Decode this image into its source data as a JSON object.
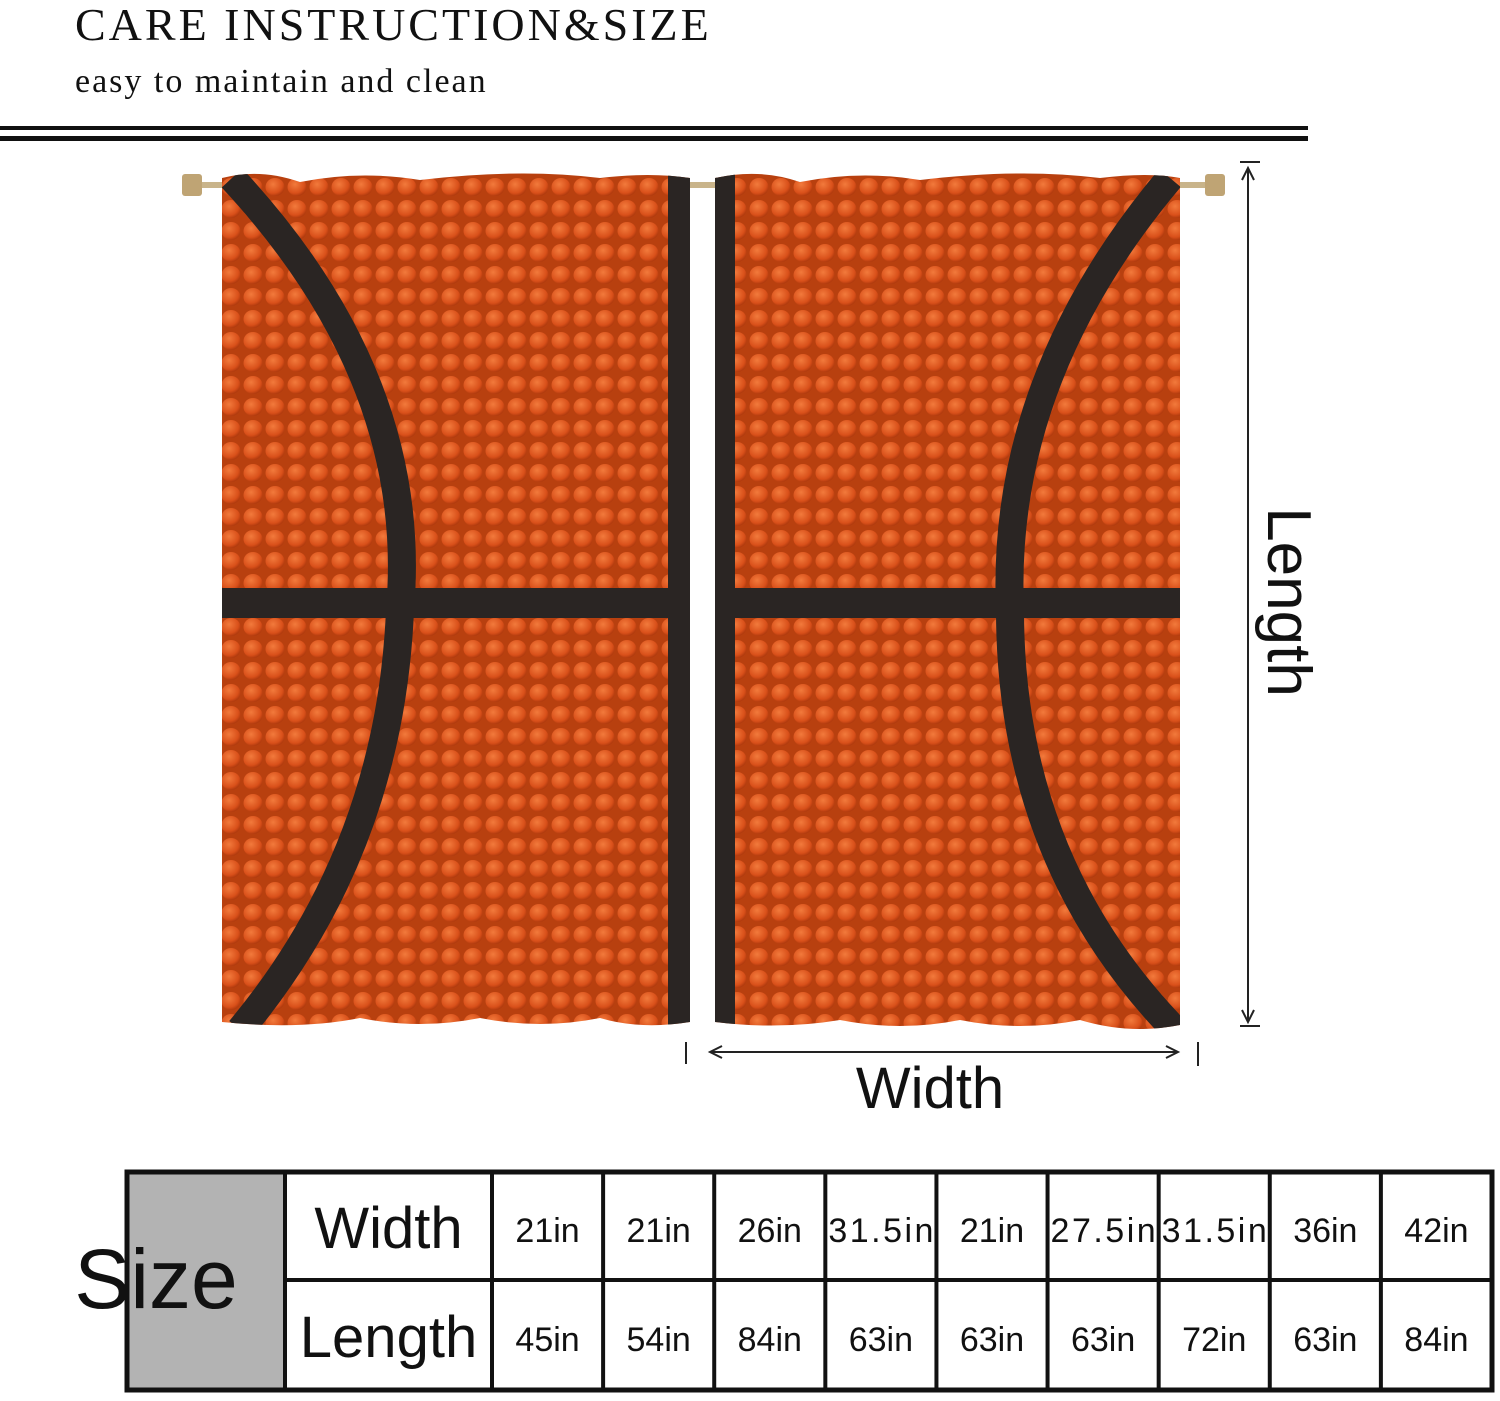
{
  "header": {
    "title": "CARE INSTRUCTION&SIZE",
    "subtitle": "easy to maintain and clean"
  },
  "diagram": {
    "length_label": "Length",
    "width_label": "Width"
  },
  "table": {
    "header": "Size",
    "rows": [
      {
        "label": "Width",
        "cells": [
          "21in",
          "21in",
          "26in",
          "31.5in",
          "21in",
          "27.5in",
          "31.5in",
          "36in",
          "42in"
        ]
      },
      {
        "label": "Length",
        "cells": [
          "45in",
          "54in",
          "84in",
          "63in",
          "63in",
          "63in",
          "72in",
          "63in",
          "84in"
        ]
      }
    ]
  }
}
